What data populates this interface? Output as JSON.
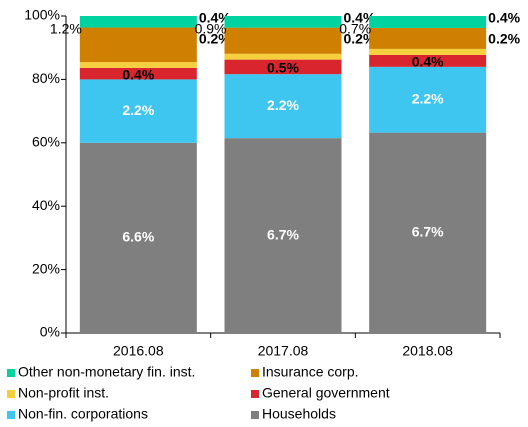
{
  "chart_data": {
    "type": "stacked100",
    "categories": [
      "2016.08",
      "2017.08",
      "2018.08"
    ],
    "series": [
      {
        "name": "Other non-monetary fin. inst.",
        "color": "#00d2a0",
        "values": [
          0.4,
          0.4,
          0.4
        ],
        "value_labels": [
          "0.4%",
          "0.4%",
          "0.4%"
        ]
      },
      {
        "name": "Insurance corp.",
        "color": "#d08000",
        "values": [
          1.2,
          0.9,
          0.7
        ],
        "value_labels": [
          "1.2%",
          "0.9%",
          "0.7%"
        ]
      },
      {
        "name": "Non-profit inst.",
        "color": "#f5cf3e",
        "values": [
          0.2,
          0.2,
          0.2
        ],
        "value_labels": [
          "0.2%",
          "0.2%",
          "0.2%"
        ]
      },
      {
        "name": "General government",
        "color": "#d9262e",
        "values": [
          0.4,
          0.5,
          0.4
        ],
        "value_labels": [
          "0.4%",
          "0.5%",
          "0.4%"
        ]
      },
      {
        "name": "Non-fin. corporations",
        "color": "#3ec6f0",
        "values": [
          2.2,
          2.2,
          2.2
        ],
        "value_labels": [
          "2.2%",
          "2.2%",
          "2.2%"
        ]
      },
      {
        "name": "Households",
        "color": "#7f7f7f",
        "values": [
          6.6,
          6.7,
          6.7
        ],
        "value_labels": [
          "6.6%",
          "6.7%",
          "6.7%"
        ]
      }
    ],
    "ylim": [
      0,
      100
    ],
    "yticks": [
      {
        "value": 0,
        "label": "0%"
      },
      {
        "value": 20,
        "label": "20%"
      },
      {
        "value": 40,
        "label": "40%"
      },
      {
        "value": 60,
        "label": "60%"
      },
      {
        "value": 80,
        "label": "80%"
      },
      {
        "value": 100,
        "label": "100%"
      }
    ]
  }
}
